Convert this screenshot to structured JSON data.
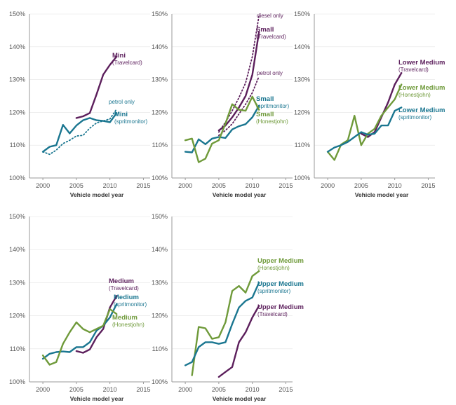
{
  "colors": {
    "travelcard": "#5c1f5c",
    "spritmonitor": "#1a7690",
    "honestjohn": "#6f9a3a",
    "axis": "#9a9a9a",
    "grid": "#e3e3e3"
  },
  "chart_data": [
    {
      "type": "line",
      "panel": "mini",
      "xlabel": "Vehicle model year",
      "ylabel": "",
      "xlim": [
        1998,
        2016
      ],
      "ylim": [
        100,
        150
      ],
      "xticks": [
        "2000",
        "2005",
        "2010",
        "2015"
      ],
      "yticks": [
        "100%",
        "110%",
        "120%",
        "130%",
        "140%",
        "150%"
      ],
      "series": [
        {
          "name": "Mini (Travelcard)",
          "source": "travelcard",
          "style": "solid",
          "x": [
            2005,
            2006,
            2007,
            2008,
            2009,
            2010,
            2011
          ],
          "y": [
            118.3,
            118.8,
            119.8,
            125.5,
            131.5,
            134.5,
            137.0
          ],
          "label": {
            "title": "Mini",
            "subtitle": "(Travelcard)"
          }
        },
        {
          "name": "Mini (spritmonitor)",
          "source": "spritmonitor",
          "style": "solid",
          "x": [
            2000,
            2001,
            2002,
            2003,
            2004,
            2005,
            2006,
            2007,
            2008,
            2009,
            2010,
            2011
          ],
          "y": [
            108.0,
            109.5,
            110.0,
            116.2,
            113.6,
            116.0,
            117.6,
            118.3,
            117.6,
            117.4,
            117.0,
            119.8
          ],
          "label": {
            "title": "Mini",
            "subtitle": "(spritmonitor)"
          }
        },
        {
          "name": "petrol only",
          "source": "spritmonitor",
          "style": "dotted",
          "x": [
            2000,
            2001,
            2002,
            2003,
            2004,
            2005,
            2006,
            2007,
            2008,
            2009,
            2010,
            2011
          ],
          "y": [
            108.0,
            107.2,
            108.5,
            110.5,
            111.5,
            112.8,
            113.0,
            115.2,
            116.8,
            117.4,
            118.0,
            121.0
          ],
          "label": {
            "note": "petrol only"
          }
        }
      ]
    },
    {
      "type": "line",
      "panel": "small",
      "xlabel": "Vehicle model year",
      "xlim": [
        1998,
        2016
      ],
      "ylim": [
        100,
        150
      ],
      "xticks": [
        "2000",
        "2005",
        "2010",
        "2015"
      ],
      "yticks": [
        "100%",
        "110%",
        "120%",
        "130%",
        "140%",
        "150%"
      ],
      "series": [
        {
          "name": "Small (Travelcard)",
          "source": "travelcard",
          "style": "solid",
          "x": [
            2005,
            2006,
            2007,
            2008,
            2009,
            2010,
            2011
          ],
          "y": [
            114.5,
            116.0,
            118.5,
            121.5,
            125.0,
            131.5,
            144.5
          ],
          "label": {
            "title": "Small",
            "subtitle": "(Travelcard)"
          }
        },
        {
          "name": "diesel only",
          "source": "travelcard",
          "style": "dotted",
          "x": [
            2005,
            2006,
            2007,
            2008,
            2009,
            2010,
            2011
          ],
          "y": [
            114.0,
            117.0,
            120.5,
            124.5,
            129.0,
            137.0,
            149.5
          ],
          "label": {
            "note": "diesel only"
          }
        },
        {
          "name": "petrol only",
          "source": "travelcard",
          "style": "dotted",
          "x": [
            2005,
            2006,
            2007,
            2008,
            2009,
            2010,
            2011
          ],
          "y": [
            113.0,
            114.5,
            116.5,
            119.5,
            122.5,
            126.0,
            131.0
          ],
          "label": {
            "note": "petrol only"
          }
        },
        {
          "name": "Small (spritmonitor)",
          "source": "spritmonitor",
          "style": "solid",
          "x": [
            2000,
            2001,
            2002,
            2003,
            2004,
            2005,
            2006,
            2007,
            2008,
            2009,
            2010,
            2011
          ],
          "y": [
            108.0,
            107.8,
            111.8,
            110.3,
            112.0,
            112.5,
            112.2,
            114.8,
            115.8,
            116.4,
            118.5,
            122.0
          ],
          "label": {
            "title": "Small",
            "subtitle": "(spritmonitor)"
          }
        },
        {
          "name": "Small (Honestjohn)",
          "source": "honestjohn",
          "style": "solid",
          "x": [
            2000,
            2001,
            2002,
            2003,
            2004,
            2005,
            2006,
            2007,
            2008,
            2009,
            2010,
            2011
          ],
          "y": [
            111.5,
            112.0,
            104.8,
            105.9,
            110.5,
            111.5,
            116.6,
            122.5,
            120.8,
            120.5,
            124.8,
            120.8
          ],
          "label": {
            "title": "Small",
            "subtitle": "(Honestjohn)"
          }
        }
      ]
    },
    {
      "type": "line",
      "panel": "lower-medium",
      "xlabel": "Vehicle model year",
      "xlim": [
        1998,
        2016
      ],
      "ylim": [
        100,
        150
      ],
      "xticks": [
        "2000",
        "2005",
        "2010",
        "2015"
      ],
      "yticks": [
        "100%",
        "110%",
        "120%",
        "130%",
        "140%",
        "150%"
      ],
      "series": [
        {
          "name": "Lower Medium (Travelcard)",
          "source": "travelcard",
          "style": "solid",
          "x": [
            2005,
            2006,
            2007,
            2008,
            2009,
            2010,
            2011
          ],
          "y": [
            113.5,
            112.5,
            114.0,
            118.5,
            123.0,
            128.5,
            132.0
          ],
          "label": {
            "title": "Lower Medium",
            "subtitle": "(Travelcard)"
          }
        },
        {
          "name": "Lower Medium (Honestjohn)",
          "source": "honestjohn",
          "style": "solid",
          "x": [
            2000,
            2001,
            2002,
            2003,
            2004,
            2005,
            2006,
            2007,
            2008,
            2009,
            2010,
            2011
          ],
          "y": [
            108.0,
            105.5,
            110.2,
            111.5,
            119.0,
            110.0,
            113.5,
            115.0,
            119.0,
            121.5,
            124.0,
            128.5
          ],
          "label": {
            "title": "Lower Medium",
            "subtitle": "(Honestjohn)"
          }
        },
        {
          "name": "Lower Medium (spritmonitor)",
          "source": "spritmonitor",
          "style": "solid",
          "x": [
            2000,
            2001,
            2002,
            2003,
            2004,
            2005,
            2006,
            2007,
            2008,
            2009,
            2010,
            2011
          ],
          "y": [
            108.0,
            109.3,
            110.0,
            111.0,
            112.5,
            114.0,
            113.2,
            113.5,
            116.0,
            116.0,
            120.5,
            121.5
          ],
          "label": {
            "title": "Lower Medium",
            "subtitle": "(spritmonitor)"
          }
        }
      ]
    },
    {
      "type": "line",
      "panel": "medium",
      "xlabel": "Vehicle model year",
      "xlim": [
        1998,
        2016
      ],
      "ylim": [
        100,
        150
      ],
      "xticks": [
        "2000",
        "2005",
        "2010",
        "2015"
      ],
      "yticks": [
        "100%",
        "110%",
        "120%",
        "130%",
        "140%",
        "150%"
      ],
      "series": [
        {
          "name": "Medium (Travelcard)",
          "source": "travelcard",
          "style": "solid",
          "x": [
            2005,
            2006,
            2007,
            2008,
            2009,
            2010,
            2011
          ],
          "y": [
            109.3,
            108.8,
            109.8,
            113.5,
            116.0,
            122.5,
            126.0
          ],
          "label": {
            "title": "Medium",
            "subtitle": "(Travelcard)"
          }
        },
        {
          "name": "Medium (spritmonitor)",
          "source": "spritmonitor",
          "style": "solid",
          "x": [
            2000,
            2001,
            2002,
            2003,
            2004,
            2005,
            2006,
            2007,
            2008,
            2009,
            2010,
            2011
          ],
          "y": [
            107.0,
            108.5,
            109.0,
            109.2,
            109.0,
            110.5,
            110.5,
            112.0,
            115.5,
            117.0,
            119.5,
            123.5
          ],
          "label": {
            "title": "Medium",
            "subtitle": "(spritmonitor)"
          }
        },
        {
          "name": "Medium (Honestjohn)",
          "source": "honestjohn",
          "style": "solid",
          "x": [
            2000,
            2001,
            2002,
            2003,
            2004,
            2005,
            2006,
            2007,
            2008,
            2009,
            2010,
            2011
          ],
          "y": [
            108.0,
            105.2,
            106.0,
            111.5,
            115.0,
            118.0,
            116.0,
            115.0,
            116.0,
            117.0,
            122.0,
            120.5
          ],
          "label": {
            "title": "Medium",
            "subtitle": "(Honestjohn)"
          }
        }
      ]
    },
    {
      "type": "line",
      "panel": "upper-medium",
      "xlabel": "Vehicle model year",
      "xlim": [
        1998,
        2016
      ],
      "ylim": [
        100,
        150
      ],
      "xticks": [
        "2000",
        "2005",
        "2010",
        "2015"
      ],
      "yticks": [
        "100%",
        "110%",
        "120%",
        "130%",
        "140%",
        "150%"
      ],
      "series": [
        {
          "name": "Upper Medium (Honestjohn)",
          "source": "honestjohn",
          "style": "solid",
          "x": [
            2001,
            2002,
            2003,
            2004,
            2005,
            2006,
            2007,
            2008,
            2009,
            2010,
            2011
          ],
          "y": [
            102.0,
            116.6,
            116.2,
            113.0,
            113.5,
            118.0,
            127.5,
            129.0,
            127.0,
            132.0,
            133.5
          ],
          "label": {
            "title": "Upper Medium",
            "subtitle": "(Honestjohn)"
          }
        },
        {
          "name": "Upper Medium (spritmonitor)",
          "source": "spritmonitor",
          "style": "solid",
          "x": [
            2000,
            2001,
            2002,
            2003,
            2004,
            2005,
            2006,
            2007,
            2008,
            2009,
            2010,
            2011
          ],
          "y": [
            105.0,
            106.0,
            110.5,
            112.0,
            112.0,
            111.5,
            112.0,
            117.5,
            122.5,
            124.5,
            125.5,
            130.0
          ],
          "label": {
            "title": "Upper Medium",
            "subtitle": "(spritmonitor)"
          }
        },
        {
          "name": "Upper Medium (Travelcard)",
          "source": "travelcard",
          "style": "solid",
          "x": [
            2005,
            2006,
            2007,
            2008,
            2009,
            2010,
            2011
          ],
          "y": [
            101.5,
            103.0,
            104.5,
            112.0,
            115.0,
            119.5,
            123.0
          ],
          "label": {
            "title": "Upper Medium",
            "subtitle": "(Travelcard)"
          }
        }
      ]
    }
  ]
}
